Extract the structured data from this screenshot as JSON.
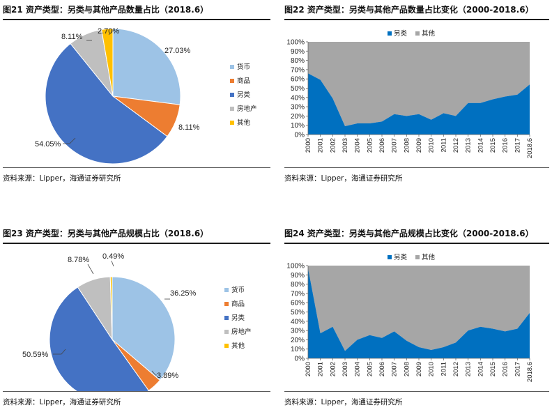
{
  "source_text": "资料来源：Lipper，海通证券研究所",
  "colors": {
    "货币": "#9DC3E6",
    "商品": "#ED7D31",
    "另类": "#4472C4",
    "房地产": "#BFBFBF",
    "其他": "#FFC000",
    "area_alt": "#0070C0",
    "area_other": "#A6A6A6"
  },
  "panels": [
    {
      "title": "图21 资产类型：另类与其他产品数量占比（2018.6）"
    },
    {
      "title": "图22 资产类型：另类与其他产品数量占比变化（2000-2018.6）"
    },
    {
      "title": "图23 资产类型：另类与其他产品规模占比（2018.6）"
    },
    {
      "title": "图24 资产类型：另类与其他产品规模占比变化（2000-2018.6）"
    }
  ],
  "chart_data": [
    {
      "type": "pie",
      "title": "资产类型：另类与其他产品数量占比（2018.6）",
      "slices": [
        {
          "label": "货币",
          "value": 27.03,
          "text": "27.03%"
        },
        {
          "label": "商品",
          "value": 8.11,
          "text": "8.11%"
        },
        {
          "label": "另类",
          "value": 54.05,
          "text": "54.05%"
        },
        {
          "label": "房地产",
          "value": 8.11,
          "text": "8.11%"
        },
        {
          "label": "其他",
          "value": 2.7,
          "text": "2.70%"
        }
      ],
      "legend": [
        "货币",
        "商品",
        "另类",
        "房地产",
        "其他"
      ]
    },
    {
      "type": "area",
      "stacked": true,
      "title": "资产类型：另类与其他产品数量占比变化（2000-2018.6）",
      "categories": [
        "2000",
        "2001",
        "2002",
        "2003",
        "2004",
        "2005",
        "2006",
        "2007",
        "2008",
        "2009",
        "2010",
        "2011",
        "2012",
        "2013",
        "2014",
        "2015",
        "2016",
        "2017",
        "2018.6"
      ],
      "series": [
        {
          "name": "另类",
          "values": [
            66,
            59,
            39,
            9,
            12,
            12,
            14,
            22,
            20,
            22,
            16,
            23,
            20,
            34,
            34,
            38,
            41,
            43,
            54
          ]
        },
        {
          "name": "其他",
          "values": [
            34,
            41,
            61,
            91,
            88,
            88,
            86,
            78,
            80,
            78,
            84,
            77,
            80,
            66,
            66,
            62,
            59,
            57,
            46
          ]
        }
      ],
      "yticks": [
        "0%",
        "10%",
        "20%",
        "30%",
        "40%",
        "50%",
        "60%",
        "70%",
        "80%",
        "90%",
        "100%"
      ],
      "ylim": [
        0,
        100
      ],
      "legend": [
        "另类",
        "其他"
      ]
    },
    {
      "type": "pie",
      "title": "资产类型：另类与其他产品规模占比（2018.6）",
      "slices": [
        {
          "label": "货币",
          "value": 36.25,
          "text": "36.25%"
        },
        {
          "label": "商品",
          "value": 3.89,
          "text": "3.89%"
        },
        {
          "label": "另类",
          "value": 50.59,
          "text": "50.59%"
        },
        {
          "label": "房地产",
          "value": 8.78,
          "text": "8.78%"
        },
        {
          "label": "其他",
          "value": 0.49,
          "text": "0.49%"
        }
      ],
      "legend": [
        "货币",
        "商品",
        "另类",
        "房地产",
        "其他"
      ]
    },
    {
      "type": "area",
      "stacked": true,
      "title": "资产类型：另类与其他产品规模占比变化（2000-2018.6）",
      "categories": [
        "2000",
        "2001",
        "2002",
        "2003",
        "2004",
        "2005",
        "2006",
        "2007",
        "2008",
        "2009",
        "2010",
        "2011",
        "2012",
        "2013",
        "2014",
        "2015",
        "2016",
        "2017",
        "2018.6"
      ],
      "series": [
        {
          "name": "另类",
          "values": [
            97,
            27,
            34,
            8,
            20,
            25,
            22,
            29,
            19,
            12,
            9,
            12,
            17,
            30,
            34,
            32,
            29,
            32,
            49
          ]
        },
        {
          "name": "其他",
          "values": [
            3,
            73,
            66,
            92,
            80,
            75,
            78,
            71,
            81,
            88,
            91,
            88,
            83,
            70,
            66,
            68,
            71,
            68,
            51
          ]
        }
      ],
      "yticks": [
        "0%",
        "10%",
        "20%",
        "30%",
        "40%",
        "50%",
        "60%",
        "70%",
        "80%",
        "90%",
        "100%"
      ],
      "ylim": [
        0,
        100
      ],
      "legend": [
        "另类",
        "其他"
      ]
    }
  ]
}
